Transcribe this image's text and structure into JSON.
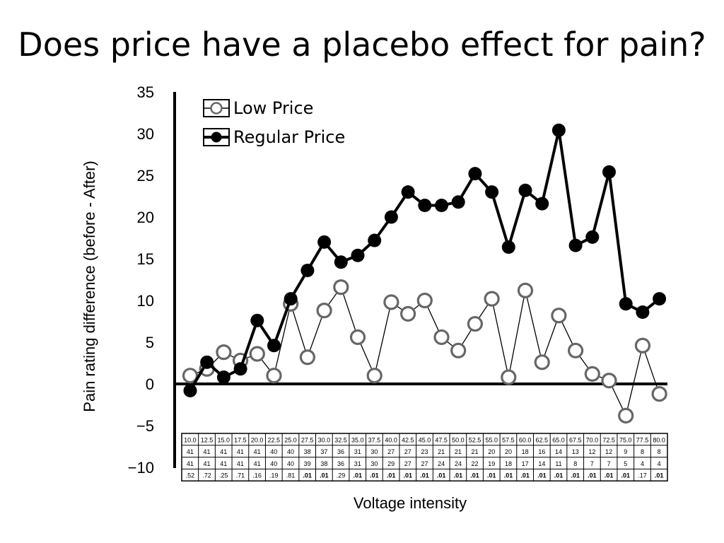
{
  "slide": {
    "title": "Does price have a placebo effect for pain?"
  },
  "chart_data": {
    "type": "line",
    "title": "Does price have a placebo effect for pain?",
    "xlabel": "Voltage intensity",
    "ylabel": "Pain rating difference (before - After)",
    "ylim": [
      -10,
      35
    ],
    "yticks": [
      35,
      30,
      25,
      20,
      15,
      10,
      5,
      0,
      -5,
      -10
    ],
    "ytick_labels": [
      "35",
      "30",
      "25",
      "20",
      "15",
      "10",
      "5",
      "0",
      "−5",
      "−10"
    ],
    "grid": false,
    "legend": "top-left",
    "categories": [
      "10.0",
      "12.5",
      "15.0",
      "17.5",
      "20.0",
      "22.5",
      "25.0",
      "27.5",
      "30.0",
      "32.5",
      "35.0",
      "37.5",
      "40.0",
      "42.5",
      "45.0",
      "47.5",
      "50.0",
      "52.5",
      "55.0",
      "57.5",
      "60.0",
      "62.5",
      "65.0",
      "67.5",
      "70.0",
      "72.5",
      "75.0",
      "77.5",
      "80.0"
    ],
    "series": [
      {
        "name": "Low Price",
        "marker": "open-circle",
        "color": "#555555",
        "values": [
          1.0,
          1.8,
          3.8,
          2.8,
          3.6,
          1.0,
          9.6,
          3.2,
          8.8,
          11.6,
          5.6,
          1.0,
          9.8,
          8.4,
          10.0,
          5.6,
          4.0,
          7.2,
          10.2,
          0.8,
          11.2,
          2.6,
          8.2,
          4.0,
          1.2,
          0.4,
          -3.8,
          4.6,
          -1.2
        ]
      },
      {
        "name": "Regular Price",
        "marker": "filled-circle",
        "color": "#000000",
        "values": [
          -0.8,
          2.6,
          0.8,
          1.8,
          7.6,
          4.6,
          10.2,
          13.6,
          17.0,
          14.6,
          15.4,
          17.2,
          20.0,
          23.0,
          21.4,
          21.4,
          21.8,
          25.2,
          23.0,
          16.4,
          23.2,
          21.6,
          30.4,
          16.6,
          17.6,
          25.4,
          9.6,
          8.6,
          10.2
        ]
      }
    ],
    "table": {
      "rows": [
        {
          "bold": [],
          "values": [
            "41",
            "41",
            "41",
            "41",
            "41",
            "40",
            "40",
            "38",
            "37",
            "36",
            "31",
            "30",
            "27",
            "27",
            "23",
            "21",
            "21",
            "21",
            "20",
            "20",
            "18",
            "16",
            "14",
            "13",
            "12",
            "12",
            "9",
            "8",
            "8"
          ]
        },
        {
          "bold": [],
          "values": [
            "41",
            "41",
            "41",
            "41",
            "41",
            "40",
            "40",
            "39",
            "38",
            "36",
            "31",
            "30",
            "29",
            "27",
            "27",
            "24",
            "24",
            "22",
            "19",
            "18",
            "17",
            "14",
            "11",
            "8",
            "7",
            "7",
            "5",
            "4",
            "4"
          ]
        },
        {
          "bold": [
            7,
            8,
            10,
            11,
            12,
            13,
            14,
            15,
            16,
            17,
            18,
            19,
            20,
            21,
            22,
            23,
            24,
            25,
            26,
            28
          ],
          "values": [
            ".52",
            ".72",
            ".25",
            ".71",
            ".16",
            ".19",
            ".81",
            ".01",
            ".01",
            ".29",
            ".01",
            ".01",
            ".01",
            ".01",
            ".01",
            ".01",
            ".01",
            ".01",
            ".01",
            ".01",
            ".01",
            ".01",
            ".01",
            ".01",
            ".01",
            ".01",
            ".01",
            ".17",
            ".01"
          ]
        }
      ]
    }
  }
}
